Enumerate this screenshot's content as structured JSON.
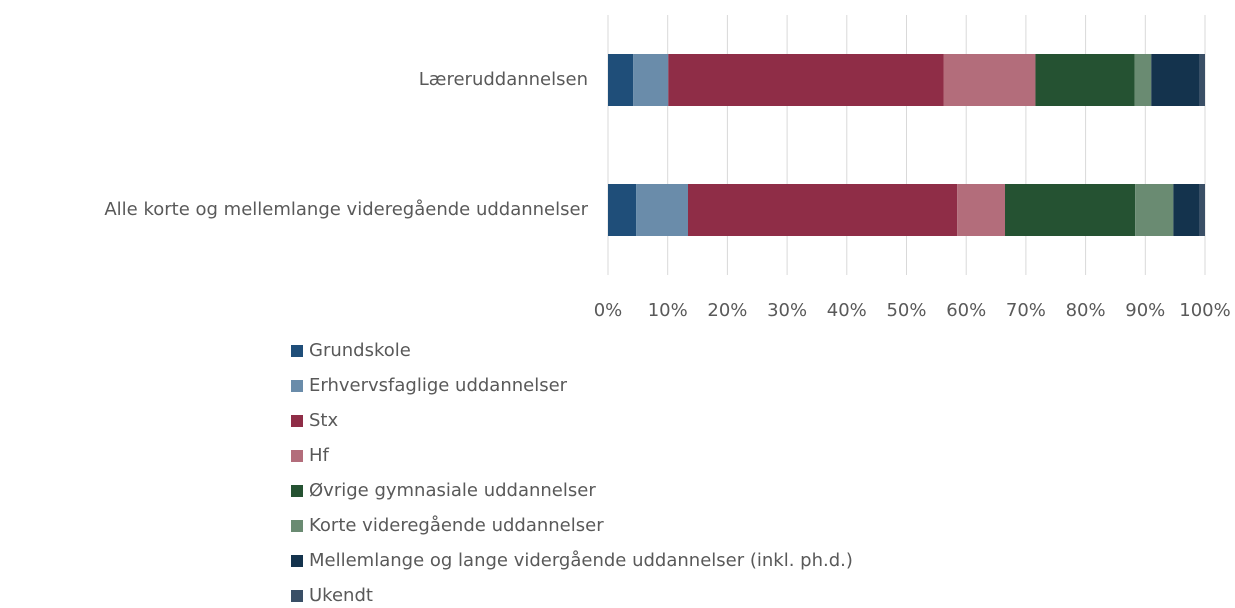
{
  "chart_data": {
    "type": "stacked-bar-horizontal",
    "categories": [
      "Lærer­uddannelsen",
      "Alle korte og mellemlange videregående uddannelser"
    ],
    "series": [
      {
        "name": "Grundskole",
        "color": "#1f4e79",
        "values": [
          4.2,
          4.7
        ]
      },
      {
        "name": "Erhvervsfaglige uddannelser",
        "color": "#6a8caa",
        "values": [
          5.9,
          8.7
        ]
      },
      {
        "name": "Stx",
        "color": "#8f2d47",
        "values": [
          46.1,
          45.1
        ]
      },
      {
        "name": "Hf",
        "color": "#b36d7b",
        "values": [
          15.4,
          8.0
        ]
      },
      {
        "name": "Øvrige gymnasiale uddannelser",
        "color": "#255232",
        "values": [
          16.6,
          21.8
        ]
      },
      {
        "name": "Korte videregående uddannelser",
        "color": "#6a8b72",
        "values": [
          2.8,
          6.4
        ]
      },
      {
        "name": "Mellemlange og lange vidergående uddannelser (inkl. ph.d.)",
        "color": "#14334d",
        "values": [
          8.1,
          4.4
        ]
      },
      {
        "name": "Ukendt",
        "color": "#3a4f66",
        "values": [
          0.9,
          0.9
        ]
      }
    ],
    "xlim": [
      0,
      100
    ],
    "xticks": [
      {
        "value": 0,
        "label": "0%"
      },
      {
        "value": 10,
        "label": "10%"
      },
      {
        "value": 20,
        "label": "20%"
      },
      {
        "value": 30,
        "label": "30%"
      },
      {
        "value": 40,
        "label": "40%"
      },
      {
        "value": 50,
        "label": "50%"
      },
      {
        "value": 60,
        "label": "60%"
      },
      {
        "value": 70,
        "label": "70%"
      },
      {
        "value": 80,
        "label": "80%"
      },
      {
        "value": 90,
        "label": "90%"
      },
      {
        "value": 100,
        "label": "100%"
      }
    ],
    "grid": true,
    "legend": "bottom"
  }
}
